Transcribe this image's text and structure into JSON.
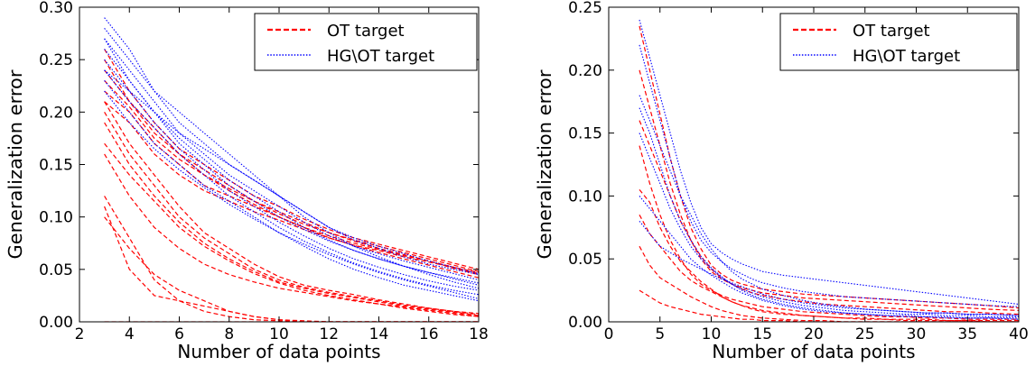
{
  "chart_data": [
    {
      "type": "line",
      "xlabel": "Number of data points",
      "ylabel": "Generalization error",
      "xlim": [
        2,
        18
      ],
      "ylim": [
        0,
        0.3
      ],
      "xticks": [
        "2",
        "4",
        "6",
        "8",
        "10",
        "12",
        "14",
        "16",
        "18"
      ],
      "yticks": [
        "0.00",
        "0.05",
        "0.10",
        "0.15",
        "0.20",
        "0.25",
        "0.30"
      ],
      "grid": false,
      "legend_position": "top-right",
      "legend": [
        {
          "label": "OT target",
          "color": "#ff0000",
          "style": "dashed"
        },
        {
          "label": "HG\\OT target",
          "color": "#0000ff",
          "style": "dotted"
        }
      ],
      "x": [
        3,
        4,
        5,
        6,
        7,
        8,
        9,
        10,
        11,
        12,
        13,
        14,
        15,
        16,
        17,
        18
      ],
      "series": [
        {
          "group": "OT target",
          "values": [
            0.22,
            0.2,
            0.17,
            0.15,
            0.13,
            0.12,
            0.11,
            0.1,
            0.09,
            0.08,
            0.073,
            0.068,
            0.062,
            0.057,
            0.052,
            0.047
          ]
        },
        {
          "group": "OT target",
          "values": [
            0.24,
            0.21,
            0.18,
            0.16,
            0.145,
            0.13,
            0.115,
            0.105,
            0.095,
            0.085,
            0.078,
            0.072,
            0.066,
            0.06,
            0.054,
            0.048
          ]
        },
        {
          "group": "OT target",
          "values": [
            0.26,
            0.22,
            0.19,
            0.165,
            0.15,
            0.135,
            0.12,
            0.11,
            0.098,
            0.088,
            0.08,
            0.074,
            0.068,
            0.062,
            0.056,
            0.05
          ]
        },
        {
          "group": "OT target",
          "values": [
            0.23,
            0.205,
            0.175,
            0.155,
            0.14,
            0.125,
            0.112,
            0.1,
            0.09,
            0.082,
            0.075,
            0.069,
            0.063,
            0.058,
            0.052,
            0.046
          ]
        },
        {
          "group": "OT target",
          "values": [
            0.25,
            0.21,
            0.185,
            0.16,
            0.14,
            0.127,
            0.115,
            0.103,
            0.093,
            0.085,
            0.077,
            0.07,
            0.064,
            0.058,
            0.051,
            0.045
          ]
        },
        {
          "group": "OT target",
          "values": [
            0.21,
            0.19,
            0.16,
            0.14,
            0.125,
            0.115,
            0.105,
            0.097,
            0.088,
            0.08,
            0.073,
            0.066,
            0.06,
            0.054,
            0.048,
            0.042
          ]
        },
        {
          "group": "OT target",
          "values": [
            0.2,
            0.16,
            0.13,
            0.1,
            0.08,
            0.065,
            0.05,
            0.04,
            0.033,
            0.028,
            0.024,
            0.02,
            0.016,
            0.013,
            0.01,
            0.008
          ]
        },
        {
          "group": "OT target",
          "values": [
            0.21,
            0.17,
            0.14,
            0.11,
            0.085,
            0.07,
            0.055,
            0.043,
            0.035,
            0.03,
            0.026,
            0.021,
            0.017,
            0.013,
            0.01,
            0.007
          ]
        },
        {
          "group": "OT target",
          "values": [
            0.19,
            0.15,
            0.12,
            0.095,
            0.075,
            0.06,
            0.048,
            0.038,
            0.032,
            0.027,
            0.023,
            0.019,
            0.015,
            0.012,
            0.009,
            0.006
          ]
        },
        {
          "group": "OT target",
          "values": [
            0.17,
            0.14,
            0.115,
            0.09,
            0.072,
            0.058,
            0.046,
            0.037,
            0.03,
            0.025,
            0.021,
            0.017,
            0.013,
            0.01,
            0.007,
            0.005
          ]
        },
        {
          "group": "OT target",
          "values": [
            0.16,
            0.12,
            0.09,
            0.07,
            0.055,
            0.045,
            0.038,
            0.032,
            0.028,
            0.024,
            0.02,
            0.017,
            0.014,
            0.011,
            0.008,
            0.005
          ]
        },
        {
          "group": "OT target",
          "values": [
            0.12,
            0.08,
            0.04,
            0.02,
            0.015,
            0.01,
            0.005,
            0.002,
            0.001,
            0,
            0,
            0,
            0,
            0,
            0,
            0
          ]
        },
        {
          "group": "OT target",
          "values": [
            0.1,
            0.07,
            0.045,
            0.03,
            0.02,
            0.01,
            0.005,
            0.002,
            0,
            0,
            0,
            0,
            0,
            0,
            0,
            0
          ]
        },
        {
          "group": "OT target",
          "values": [
            0.11,
            0.05,
            0.025,
            0.02,
            0.01,
            0.005,
            0.002,
            0.001,
            0,
            0,
            0,
            0,
            0,
            0,
            0,
            0
          ]
        },
        {
          "group": "OT target",
          "values": [
            0,
            0,
            0,
            0,
            0,
            0,
            0,
            0,
            0,
            0,
            0,
            0,
            0,
            0,
            0,
            0
          ]
        },
        {
          "group": "HG\\OT target",
          "values": [
            0.29,
            0.26,
            0.22,
            0.19,
            0.17,
            0.15,
            0.135,
            0.12,
            0.105,
            0.09,
            0.078,
            0.07,
            0.062,
            0.055,
            0.05,
            0.045
          ]
        },
        {
          "group": "HG\\OT target",
          "values": [
            0.27,
            0.24,
            0.21,
            0.18,
            0.16,
            0.14,
            0.125,
            0.11,
            0.095,
            0.082,
            0.072,
            0.065,
            0.058,
            0.052,
            0.046,
            0.04
          ]
        },
        {
          "group": "HG\\OT target",
          "values": [
            0.24,
            0.22,
            0.2,
            0.18,
            0.165,
            0.15,
            0.135,
            0.12,
            0.105,
            0.09,
            0.08,
            0.072,
            0.065,
            0.058,
            0.052,
            0.046
          ]
        },
        {
          "group": "HG\\OT target",
          "values": [
            0.26,
            0.23,
            0.2,
            0.175,
            0.155,
            0.135,
            0.12,
            0.105,
            0.09,
            0.078,
            0.068,
            0.06,
            0.053,
            0.047,
            0.042,
            0.037
          ]
        },
        {
          "group": "HG\\OT target",
          "values": [
            0.25,
            0.22,
            0.19,
            0.165,
            0.145,
            0.125,
            0.11,
            0.095,
            0.082,
            0.07,
            0.06,
            0.052,
            0.045,
            0.039,
            0.034,
            0.03
          ]
        },
        {
          "group": "HG\\OT target",
          "values": [
            0.28,
            0.25,
            0.22,
            0.2,
            0.18,
            0.16,
            0.14,
            0.12,
            0.1,
            0.085,
            0.072,
            0.062,
            0.053,
            0.045,
            0.038,
            0.032
          ]
        },
        {
          "group": "HG\\OT target",
          "values": [
            0.23,
            0.2,
            0.17,
            0.15,
            0.13,
            0.115,
            0.1,
            0.085,
            0.072,
            0.06,
            0.05,
            0.042,
            0.035,
            0.03,
            0.025,
            0.02
          ]
        },
        {
          "group": "HG\\OT target",
          "values": [
            0.24,
            0.21,
            0.185,
            0.16,
            0.14,
            0.12,
            0.105,
            0.09,
            0.077,
            0.066,
            0.056,
            0.048,
            0.041,
            0.035,
            0.03,
            0.026
          ]
        },
        {
          "group": "HG\\OT target",
          "values": [
            0.22,
            0.19,
            0.165,
            0.145,
            0.128,
            0.112,
            0.098,
            0.085,
            0.074,
            0.064,
            0.055,
            0.047,
            0.04,
            0.034,
            0.028,
            0.022
          ]
        },
        {
          "group": "HG\\OT target",
          "values": [
            0.27,
            0.23,
            0.2,
            0.17,
            0.15,
            0.13,
            0.115,
            0.1,
            0.088,
            0.077,
            0.068,
            0.06,
            0.053,
            0.047,
            0.041,
            0.035
          ]
        }
      ]
    },
    {
      "type": "line",
      "xlabel": "Number of data points",
      "ylabel": "Generalization error",
      "xlim": [
        0,
        40
      ],
      "ylim": [
        0,
        0.25
      ],
      "xticks": [
        "0",
        "5",
        "10",
        "15",
        "20",
        "25",
        "30",
        "35",
        "40"
      ],
      "yticks": [
        "0.00",
        "0.05",
        "0.10",
        "0.15",
        "0.20",
        "0.25"
      ],
      "grid": false,
      "legend_position": "top-right",
      "legend": [
        {
          "label": "OT target",
          "color": "#ff0000",
          "style": "dashed"
        },
        {
          "label": "HG\\OT target",
          "color": "#0000ff",
          "style": "dotted"
        }
      ],
      "x": [
        3,
        4,
        5,
        6,
        7,
        8,
        9,
        10,
        11,
        12,
        13,
        14,
        15,
        17,
        19,
        21,
        23,
        25,
        27,
        29,
        31,
        33,
        35,
        37,
        40
      ],
      "series": [
        {
          "group": "OT target",
          "values": [
            0.235,
            0.2,
            0.165,
            0.13,
            0.1,
            0.075,
            0.058,
            0.045,
            0.038,
            0.033,
            0.03,
            0.028,
            0.026,
            0.024,
            0.022,
            0.021,
            0.02,
            0.019,
            0.018,
            0.017,
            0.016,
            0.015,
            0.014,
            0.013,
            0.011
          ]
        },
        {
          "group": "OT target",
          "values": [
            0.16,
            0.14,
            0.12,
            0.1,
            0.08,
            0.065,
            0.052,
            0.042,
            0.035,
            0.03,
            0.026,
            0.023,
            0.021,
            0.018,
            0.016,
            0.014,
            0.013,
            0.012,
            0.011,
            0.01,
            0.009,
            0.008,
            0.008,
            0.007,
            0.006
          ]
        },
        {
          "group": "OT target",
          "values": [
            0.105,
            0.095,
            0.075,
            0.06,
            0.048,
            0.04,
            0.032,
            0.026,
            0.02,
            0.016,
            0.013,
            0.01,
            0.008,
            0.006,
            0.005,
            0.004,
            0.003,
            0.003,
            0.002,
            0.002,
            0.002,
            0.001,
            0.001,
            0.001,
            0.001
          ]
        },
        {
          "group": "OT target",
          "values": [
            0.085,
            0.07,
            0.06,
            0.05,
            0.04,
            0.033,
            0.028,
            0.024,
            0.02,
            0.016,
            0.013,
            0.011,
            0.009,
            0.007,
            0.005,
            0.004,
            0.003,
            0.002,
            0.002,
            0.001,
            0.001,
            0.001,
            0.001,
            0,
            0
          ]
        },
        {
          "group": "OT target",
          "values": [
            0.06,
            0.045,
            0.035,
            0.03,
            0.025,
            0.02,
            0.016,
            0.012,
            0.009,
            0.007,
            0.005,
            0.004,
            0.003,
            0.002,
            0.001,
            0.001,
            0,
            0,
            0,
            0,
            0,
            0,
            0,
            0,
            0
          ]
        },
        {
          "group": "OT target",
          "values": [
            0.025,
            0.02,
            0.015,
            0.012,
            0.01,
            0.008,
            0.006,
            0.005,
            0.004,
            0.003,
            0.002,
            0.002,
            0.001,
            0.001,
            0,
            0,
            0,
            0,
            0,
            0,
            0,
            0,
            0,
            0,
            0
          ]
        },
        {
          "group": "OT target",
          "values": [
            0.14,
            0.11,
            0.085,
            0.065,
            0.05,
            0.038,
            0.03,
            0.025,
            0.021,
            0.018,
            0.016,
            0.014,
            0.012,
            0.01,
            0.008,
            0.007,
            0.006,
            0.005,
            0.004,
            0.004,
            0.003,
            0.003,
            0.002,
            0.002,
            0.002
          ]
        },
        {
          "group": "OT target",
          "values": [
            0.2,
            0.17,
            0.14,
            0.11,
            0.085,
            0.065,
            0.05,
            0.04,
            0.034,
            0.03,
            0.027,
            0.025,
            0.023,
            0.021,
            0.019,
            0.018,
            0.017,
            0.016,
            0.015,
            0.014,
            0.013,
            0.012,
            0.011,
            0.01,
            0.009
          ]
        },
        {
          "group": "HG\\OT target",
          "values": [
            0.24,
            0.21,
            0.18,
            0.15,
            0.12,
            0.095,
            0.075,
            0.062,
            0.055,
            0.05,
            0.046,
            0.043,
            0.04,
            0.037,
            0.035,
            0.033,
            0.031,
            0.029,
            0.027,
            0.025,
            0.023,
            0.021,
            0.019,
            0.017,
            0.014
          ]
        },
        {
          "group": "HG\\OT target",
          "values": [
            0.22,
            0.19,
            0.16,
            0.13,
            0.1,
            0.08,
            0.065,
            0.055,
            0.048,
            0.042,
            0.038,
            0.034,
            0.031,
            0.027,
            0.024,
            0.022,
            0.02,
            0.019,
            0.018,
            0.017,
            0.016,
            0.015,
            0.014,
            0.013,
            0.012
          ]
        },
        {
          "group": "HG\\OT target",
          "values": [
            0.18,
            0.16,
            0.14,
            0.12,
            0.1,
            0.085,
            0.07,
            0.058,
            0.048,
            0.04,
            0.034,
            0.03,
            0.026,
            0.021,
            0.017,
            0.014,
            0.012,
            0.01,
            0.009,
            0.008,
            0.007,
            0.007,
            0.006,
            0.006,
            0.005
          ]
        },
        {
          "group": "HG\\OT target",
          "values": [
            0.17,
            0.15,
            0.125,
            0.1,
            0.08,
            0.065,
            0.052,
            0.043,
            0.036,
            0.03,
            0.025,
            0.021,
            0.018,
            0.014,
            0.011,
            0.009,
            0.007,
            0.006,
            0.005,
            0.005,
            0.004,
            0.004,
            0.003,
            0.003,
            0.003
          ]
        },
        {
          "group": "HG\\OT target",
          "values": [
            0.15,
            0.13,
            0.11,
            0.09,
            0.074,
            0.06,
            0.05,
            0.042,
            0.035,
            0.03,
            0.026,
            0.023,
            0.02,
            0.016,
            0.013,
            0.011,
            0.009,
            0.008,
            0.007,
            0.006,
            0.006,
            0.005,
            0.005,
            0.004,
            0.004
          ]
        },
        {
          "group": "HG\\OT target",
          "values": [
            0.1,
            0.09,
            0.08,
            0.07,
            0.06,
            0.05,
            0.043,
            0.037,
            0.032,
            0.027,
            0.023,
            0.02,
            0.017,
            0.013,
            0.01,
            0.008,
            0.007,
            0.006,
            0.005,
            0.004,
            0.004,
            0.003,
            0.003,
            0.003,
            0.002
          ]
        },
        {
          "group": "HG\\OT target",
          "values": [
            0.08,
            0.07,
            0.06,
            0.055,
            0.05,
            0.046,
            0.042,
            0.038,
            0.034,
            0.031,
            0.028,
            0.025,
            0.022,
            0.018,
            0.015,
            0.013,
            0.011,
            0.01,
            0.009,
            0.008,
            0.007,
            0.007,
            0.006,
            0.006,
            0.005
          ]
        }
      ]
    }
  ]
}
